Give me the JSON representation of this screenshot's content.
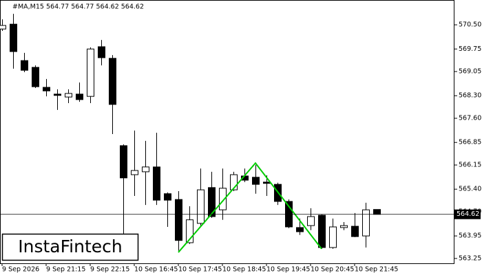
{
  "chart_data": {
    "type": "candlestick",
    "header": "#MA,M15  564.77 564.77 564.62 564.62",
    "watermark": "InstaFintech",
    "categories": [
      "9 Sep 2026",
      null,
      null,
      null,
      "9 Sep 21:15",
      null,
      null,
      null,
      "9 Sep 22:15",
      null,
      null,
      null,
      "10 Sep 16:45",
      null,
      null,
      null,
      "10 Sep 17:45",
      null,
      null,
      null,
      "10 Sep 18:45",
      null,
      null,
      null,
      "10 Sep 19:45",
      null,
      null,
      null,
      "10 Sep 20:45",
      null,
      null,
      null,
      "10 Sep 21:45",
      null,
      null
    ],
    "open": [
      570.37,
      570.52,
      569.39,
      569.18,
      568.56,
      568.35,
      568.26,
      568.35,
      568.28,
      569.82,
      569.46,
      566.75,
      565.85,
      565.94,
      566.09,
      565.26,
      565.08,
      563.74,
      564.34,
      565.45,
      564.76,
      565.38,
      565.81,
      565.77,
      565.62,
      565.55,
      565.02,
      564.21,
      564.27,
      564.59,
      563.59,
      564.21,
      564.25,
      563.95,
      564.77
    ],
    "high": [
      570.67,
      570.84,
      569.63,
      569.24,
      568.82,
      568.5,
      568.5,
      568.71,
      569.8,
      570.03,
      569.56,
      566.79,
      567.22,
      566.9,
      567.15,
      565.3,
      565.34,
      564.87,
      566.04,
      565.94,
      566.04,
      565.94,
      566.04,
      566.15,
      565.83,
      565.6,
      565.08,
      564.49,
      564.81,
      564.62,
      564.49,
      564.38,
      564.66,
      564.98,
      564.77
    ],
    "low": [
      570.31,
      569.14,
      569.03,
      568.54,
      568.28,
      567.86,
      568.07,
      568.11,
      568.07,
      569.24,
      567.11,
      563.91,
      565.19,
      564.91,
      564.91,
      564.23,
      563.49,
      563.7,
      564.27,
      564.51,
      564.45,
      565.34,
      565.62,
      565.26,
      565.19,
      564.91,
      564.19,
      563.98,
      564.13,
      563.55,
      563.55,
      564.13,
      563.91,
      563.59,
      564.62
    ],
    "close": [
      570.48,
      569.67,
      569.09,
      568.58,
      568.45,
      568.31,
      568.37,
      568.18,
      569.75,
      569.48,
      568.03,
      565.75,
      565.98,
      566.09,
      565.06,
      565.06,
      563.81,
      564.45,
      565.38,
      564.55,
      565.43,
      565.85,
      565.68,
      565.55,
      565.58,
      565.02,
      564.23,
      564.08,
      564.55,
      563.59,
      564.23,
      564.27,
      563.93,
      564.76,
      564.62
    ],
    "up_color": "#ffffff",
    "down_color": "#000000",
    "current_price": 564.62,
    "pattern": {
      "color": "#00cc00",
      "points": [
        16,
        23,
        29
      ],
      "values": [
        563.44,
        566.21,
        563.55
      ]
    },
    "ylim": [
      563.1,
      571.27
    ],
    "yticks": [
      {
        "value": 570.5,
        "label": "570.50"
      },
      569.75,
      569.05,
      {
        "value": 568.3,
        "label": "568.30"
      },
      {
        "value": 567.6,
        "label": "567.60"
      },
      566.85,
      566.15,
      {
        "value": 565.4,
        "label": "565.40"
      },
      {
        "value": 564.7,
        "label": "564.70"
      },
      563.95,
      563.25
    ]
  }
}
